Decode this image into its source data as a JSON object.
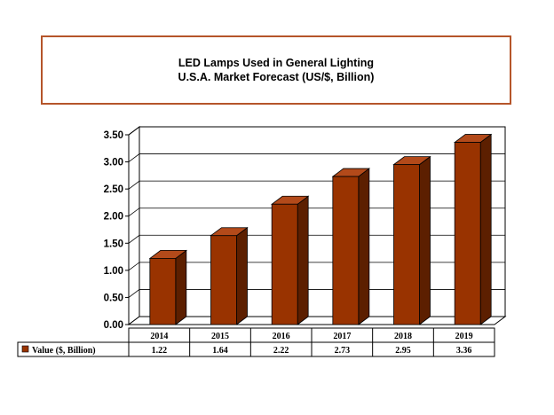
{
  "title_box": {
    "line1": "LED Lamps Used in General Lighting",
    "line2": "U.S.A. Market Forecast (US/$, Billion)"
  },
  "chart_data": {
    "type": "bar",
    "title": "LED Lamps Used in General Lighting U.S.A. Market Forecast (US/$, Billion)",
    "categories": [
      "2014",
      "2015",
      "2016",
      "2017",
      "2018",
      "2019"
    ],
    "series": [
      {
        "name": "Value ($, Billion)",
        "values": [
          1.22,
          1.64,
          2.22,
          2.73,
          2.95,
          3.36
        ],
        "labels": [
          "1.22",
          "1.64",
          "2.22",
          "2.73",
          "2.95",
          "3.36"
        ],
        "color": "#993300"
      }
    ],
    "yticks": [
      "0.00",
      "0.50",
      "1.00",
      "1.50",
      "2.00",
      "2.50",
      "3.00",
      "3.50"
    ],
    "ylim": [
      0,
      3.5
    ],
    "grid": true,
    "style_3d": true,
    "data_table": true
  },
  "colors": {
    "bar_face": "#993300",
    "bar_side": "#5c1f00",
    "bar_top": "#b34a1a",
    "title_border": "#b5552a"
  }
}
